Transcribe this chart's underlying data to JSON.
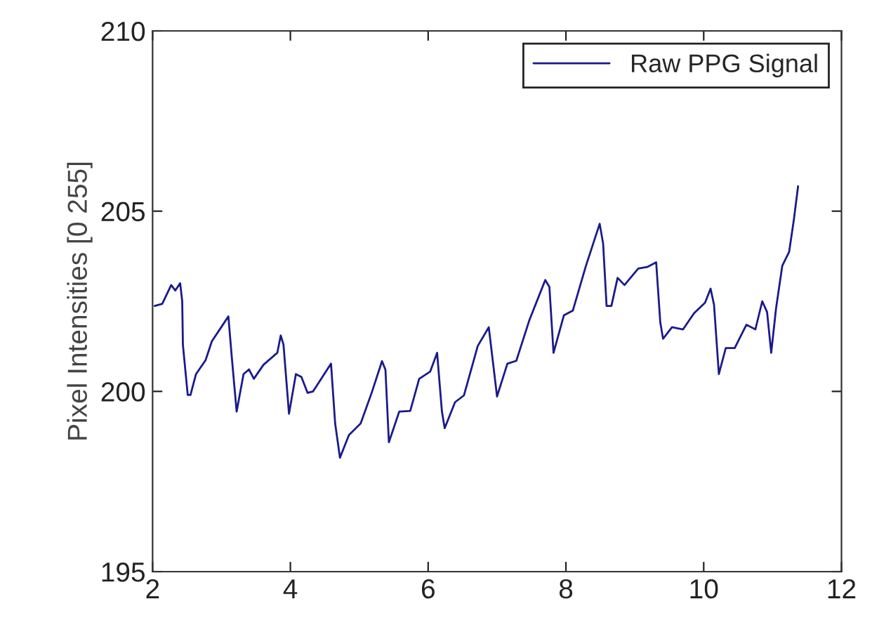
{
  "chart_data": {
    "type": "line",
    "ylabel": "Pixel Intensities [0 255]",
    "xlim": [
      2,
      12
    ],
    "xticks": [
      2,
      4,
      6,
      8,
      10,
      12
    ],
    "ylim": [
      195,
      210
    ],
    "yticks": [
      195,
      200,
      205,
      210
    ],
    "grid": false,
    "legend": "top right",
    "marker": "none",
    "line_style": "solid",
    "series": [
      {
        "name": "Raw PPG Signal",
        "color": "#1a1a8c",
        "x": [
          2.03,
          2.14,
          2.27,
          2.33,
          2.4,
          2.43,
          2.44,
          2.51,
          2.55,
          2.63,
          2.77,
          2.86,
          3.02,
          3.1,
          3.15,
          3.22,
          3.32,
          3.4,
          3.47,
          3.61,
          3.81,
          3.86,
          3.9,
          3.98,
          4.08,
          4.16,
          4.25,
          4.33,
          4.59,
          4.65,
          4.72,
          4.85,
          5.02,
          5.18,
          5.33,
          5.38,
          5.43,
          5.58,
          5.74,
          5.87,
          6.03,
          6.13,
          6.2,
          6.24,
          6.39,
          6.52,
          6.72,
          6.88,
          7.0,
          7.15,
          7.28,
          7.47,
          7.7,
          7.76,
          7.82,
          7.97,
          8.1,
          8.29,
          8.49,
          8.54,
          8.59,
          8.66,
          8.75,
          8.85,
          9.05,
          9.18,
          9.31,
          9.37,
          9.41,
          9.54,
          9.7,
          9.86,
          10.02,
          10.1,
          10.15,
          10.22,
          10.32,
          10.45,
          10.62,
          10.75,
          10.85,
          10.92,
          10.98,
          11.05,
          11.14,
          11.24,
          11.31,
          11.37
        ],
        "values": [
          202.37,
          202.43,
          202.95,
          202.8,
          203.0,
          202.5,
          201.29,
          199.9,
          199.9,
          200.48,
          200.87,
          201.39,
          201.85,
          202.08,
          200.94,
          199.44,
          200.48,
          200.61,
          200.35,
          200.74,
          201.07,
          201.55,
          201.3,
          199.38,
          200.48,
          200.4,
          199.96,
          200.0,
          200.77,
          199.11,
          198.16,
          198.79,
          199.11,
          199.96,
          200.84,
          200.6,
          198.59,
          199.44,
          199.46,
          200.35,
          200.55,
          201.07,
          199.44,
          198.98,
          199.7,
          199.89,
          201.26,
          201.78,
          199.86,
          200.77,
          200.85,
          201.98,
          203.09,
          202.9,
          201.07,
          202.11,
          202.24,
          203.48,
          204.65,
          204.1,
          202.37,
          202.37,
          203.15,
          202.95,
          203.41,
          203.45,
          203.58,
          201.91,
          201.46,
          201.78,
          201.72,
          202.17,
          202.46,
          202.85,
          202.4,
          200.48,
          201.2,
          201.2,
          201.85,
          201.72,
          202.5,
          202.2,
          201.07,
          202.3,
          203.48,
          203.87,
          204.78,
          205.69
        ]
      }
    ]
  }
}
